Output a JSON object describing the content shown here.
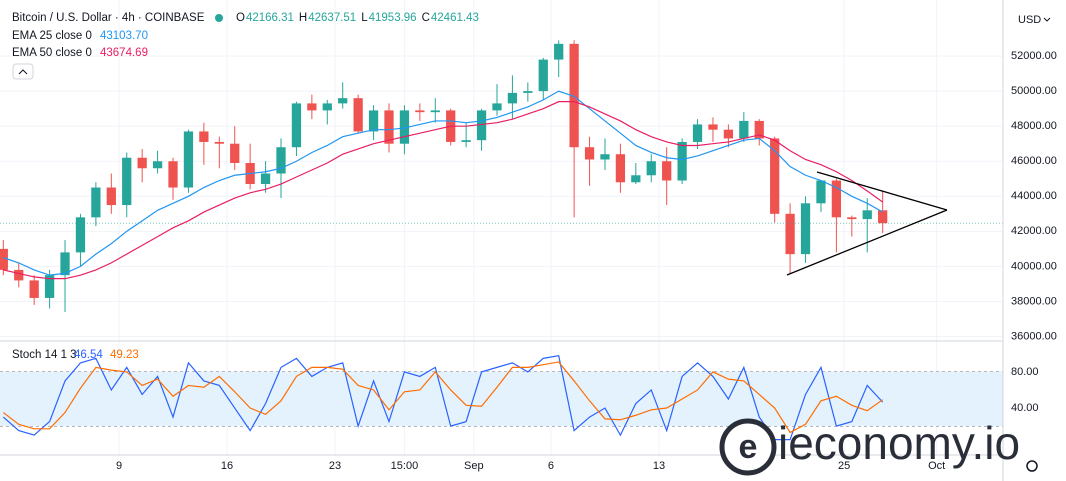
{
  "header": {
    "symbol": "Bitcoin / U.S. Dollar · 4h · COINBASE",
    "ohlc": [
      {
        "label": "O",
        "value": "42166.31"
      },
      {
        "label": "H",
        "value": "42637.51"
      },
      {
        "label": "L",
        "value": "41953.96"
      },
      {
        "label": "C",
        "value": "42461.43"
      }
    ],
    "indicators": [
      {
        "name": "EMA 25 close 0",
        "value": "43103.70"
      },
      {
        "name": "EMA 50 close 0",
        "value": "43674.69"
      }
    ],
    "stoch": {
      "name": "Stoch 14 1 3",
      "k": "46.54",
      "d": "49.23"
    },
    "currency": "USD",
    "watermark": "ieconomy.io"
  },
  "chart_data": [
    {
      "type": "candlestick",
      "up_color": "#26a69a",
      "down_color": "#ef5350",
      "x": [
        0.5,
        1.5,
        2.5,
        3.5,
        4.5,
        5.5,
        6.5,
        7.5,
        8.5,
        9.5,
        10.5,
        11.5,
        12.5,
        13.5,
        14.5,
        15.5,
        16.5,
        17.5,
        18.5,
        19.5,
        20.5,
        21.5,
        22.5,
        23.5,
        24.5,
        25.5,
        26.5,
        27.5,
        28.5,
        29.5,
        30.5,
        31.5,
        32.5,
        33.5,
        34.5,
        35.5,
        36.5,
        37.5,
        38.5,
        39.5,
        40.5,
        41.5,
        42.5,
        43.5,
        44.5,
        45.5,
        46.5,
        47.5,
        48.5,
        49.5,
        50.5,
        51.5,
        52.5,
        53.5,
        54.5,
        55.5,
        56.5,
        57.5
      ],
      "open": [
        41000,
        39800,
        39200,
        38200,
        39500,
        40800,
        42800,
        44500,
        43500,
        46200,
        45600,
        46000,
        44500,
        47700,
        47100,
        47000,
        45900,
        44700,
        45300,
        46800,
        49300,
        48900,
        49300,
        49600,
        47700,
        48900,
        47000,
        48900,
        48800,
        48900,
        47100,
        47200,
        48900,
        49300,
        49900,
        50000,
        51800,
        52700,
        46800,
        46100,
        46400,
        44800,
        45200,
        46000,
        44900,
        47100,
        48100,
        47800,
        47300,
        48300,
        47300,
        43000,
        40700,
        43600,
        44900,
        42800,
        42700,
        43200
      ],
      "high": [
        41500,
        40200,
        39500,
        39800,
        41500,
        43000,
        44800,
        45300,
        46500,
        46700,
        46600,
        46200,
        47800,
        48200,
        47400,
        48000,
        47000,
        46000,
        47300,
        49400,
        49800,
        49500,
        50500,
        49800,
        49200,
        49300,
        49200,
        49300,
        49600,
        49000,
        48200,
        49000,
        50400,
        50900,
        50500,
        51900,
        52900,
        52900,
        47400,
        47300,
        47000,
        45900,
        46400,
        46800,
        47300,
        48400,
        48500,
        48100,
        48800,
        48400,
        47400,
        43600,
        44000,
        44900,
        45000,
        42900,
        43900,
        44300
      ],
      "low": [
        39500,
        38800,
        37800,
        37600,
        37400,
        40000,
        42300,
        43000,
        42800,
        44800,
        45300,
        43800,
        44200,
        45800,
        45600,
        45500,
        44400,
        44200,
        43900,
        46300,
        48400,
        48100,
        49000,
        47600,
        47200,
        46500,
        46400,
        48300,
        48200,
        46900,
        46800,
        46600,
        48600,
        48400,
        49400,
        49500,
        50800,
        42800,
        44600,
        45500,
        44200,
        44700,
        44800,
        43500,
        44700,
        46700,
        47100,
        46800,
        47100,
        46900,
        42500,
        39600,
        40200,
        43100,
        40800,
        41700,
        40800,
        41900
      ],
      "close": [
        39800,
        39200,
        38200,
        39500,
        40800,
        42800,
        44500,
        43500,
        46200,
        45600,
        46000,
        44500,
        47700,
        47100,
        47000,
        45900,
        44700,
        45300,
        46800,
        49300,
        48900,
        49300,
        49600,
        47700,
        48900,
        47000,
        48900,
        48800,
        48900,
        47100,
        47200,
        48900,
        49300,
        49900,
        50000,
        51800,
        52700,
        46800,
        46100,
        46400,
        44800,
        45200,
        46000,
        44900,
        47100,
        48100,
        47800,
        47300,
        48300,
        47300,
        43000,
        40700,
        43600,
        44900,
        42800,
        42700,
        43200,
        42461
      ],
      "series": [
        {
          "name": "EMA 25",
          "color": "#2196f3",
          "values": [
            40500,
            40200,
            39800,
            39500,
            39600,
            40000,
            40700,
            41300,
            42000,
            42600,
            43200,
            43600,
            44000,
            44500,
            44900,
            45200,
            45300,
            45400,
            45600,
            46000,
            46500,
            46900,
            47400,
            47600,
            47800,
            47800,
            47900,
            48100,
            48300,
            48300,
            48200,
            48300,
            48500,
            48800,
            49100,
            49500,
            50000,
            49700,
            49000,
            48300,
            47600,
            46900,
            46500,
            46200,
            46100,
            46300,
            46600,
            46900,
            47200,
            47300,
            46600,
            45700,
            45200,
            44900,
            44500,
            44000,
            43600,
            43104
          ]
        },
        {
          "name": "EMA 50",
          "color": "#e91e63",
          "values": [
            39800,
            39600,
            39400,
            39300,
            39300,
            39500,
            39800,
            40200,
            40700,
            41200,
            41700,
            42200,
            42600,
            43100,
            43500,
            43900,
            44200,
            44400,
            44700,
            45100,
            45500,
            45900,
            46400,
            46700,
            47000,
            47200,
            47400,
            47600,
            47800,
            48000,
            48000,
            48100,
            48200,
            48400,
            48700,
            49000,
            49400,
            49400,
            49100,
            48700,
            48300,
            47800,
            47400,
            47100,
            46900,
            46900,
            47000,
            47100,
            47300,
            47500,
            47200,
            46600,
            46100,
            45800,
            45400,
            44900,
            44300,
            43675
          ]
        }
      ],
      "last_price": 42461,
      "xlim": [
        0.285,
        65.3
      ],
      "ylim": [
        35800,
        55200
      ],
      "yticks": [
        {
          "value": 36000,
          "label": "36000.00"
        },
        {
          "value": 38000,
          "label": "38000.00"
        },
        {
          "value": 40000,
          "label": "40000.00"
        },
        {
          "value": 42000,
          "label": "42000.00"
        },
        {
          "value": 44000,
          "label": "44000.00"
        },
        {
          "value": 46000,
          "label": "46000.00"
        },
        {
          "value": 48000,
          "label": "48000.00"
        },
        {
          "value": 50000,
          "label": "50000.00"
        },
        {
          "value": 52000,
          "label": "52000.00"
        }
      ],
      "grid": true
    },
    {
      "type": "line",
      "band": [
        20,
        80
      ],
      "band_color": "#e3f2fd",
      "series": [
        {
          "name": "%K",
          "color": "#2962ff",
          "values": [
            30,
            15,
            10,
            25,
            70,
            90,
            95,
            60,
            85,
            55,
            75,
            30,
            90,
            70,
            65,
            40,
            15,
            45,
            85,
            95,
            75,
            85,
            90,
            20,
            70,
            25,
            80,
            75,
            85,
            20,
            25,
            80,
            85,
            90,
            80,
            95,
            98,
            15,
            30,
            40,
            10,
            45,
            60,
            15,
            75,
            90,
            75,
            50,
            85,
            30,
            5,
            5,
            55,
            85,
            20,
            25,
            65,
            46.54
          ]
        },
        {
          "name": "%D",
          "color": "#ff6d00",
          "values": [
            35,
            22,
            17,
            17,
            35,
            62,
            85,
            82,
            80,
            65,
            72,
            53,
            65,
            63,
            75,
            58,
            40,
            33,
            48,
            75,
            85,
            85,
            83,
            65,
            60,
            38,
            58,
            60,
            80,
            60,
            43,
            42,
            63,
            85,
            85,
            88,
            91,
            70,
            48,
            28,
            27,
            32,
            38,
            40,
            50,
            60,
            80,
            72,
            70,
            55,
            40,
            13,
            22,
            48,
            53,
            43,
            37,
            49.23
          ]
        }
      ],
      "xlim": [
        0.285,
        65.3
      ],
      "ylim": [
        -12,
        112
      ],
      "yticks": [
        {
          "value": 40,
          "label": "40.00"
        },
        {
          "value": 80,
          "label": "80.00"
        }
      ],
      "xticks": [
        {
          "value": 8,
          "label": "9"
        },
        {
          "value": 15,
          "label": "16"
        },
        {
          "value": 22,
          "label": "23"
        },
        {
          "value": 26.5,
          "label": "15:00"
        },
        {
          "value": 31,
          "label": "Sep"
        },
        {
          "value": 36,
          "label": "6"
        },
        {
          "value": 43,
          "label": "13"
        },
        {
          "value": 55,
          "label": "25"
        },
        {
          "value": 61,
          "label": "Oct"
        }
      ],
      "grid": true
    }
  ]
}
